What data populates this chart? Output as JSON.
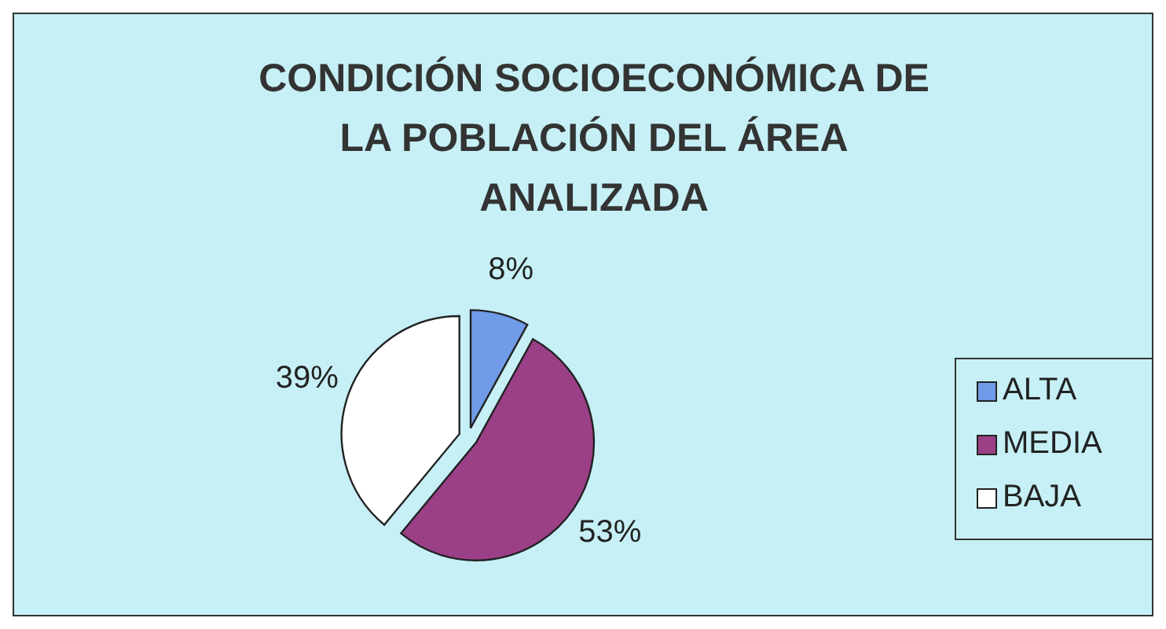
{
  "chart_data": {
    "type": "pie",
    "title": "CONDICIÓN SOCIOECONÓMICA DE LA POBLACIÓN DEL ÁREA ANALIZADA",
    "categories": [
      "ALTA",
      "MEDIA",
      "BAJA"
    ],
    "values": [
      8,
      53,
      39
    ],
    "colors": [
      "#6f9be8",
      "#9b3f86",
      "#ffffff"
    ],
    "value_labels": [
      "8%",
      "53%",
      "39%"
    ],
    "legend": "right"
  }
}
